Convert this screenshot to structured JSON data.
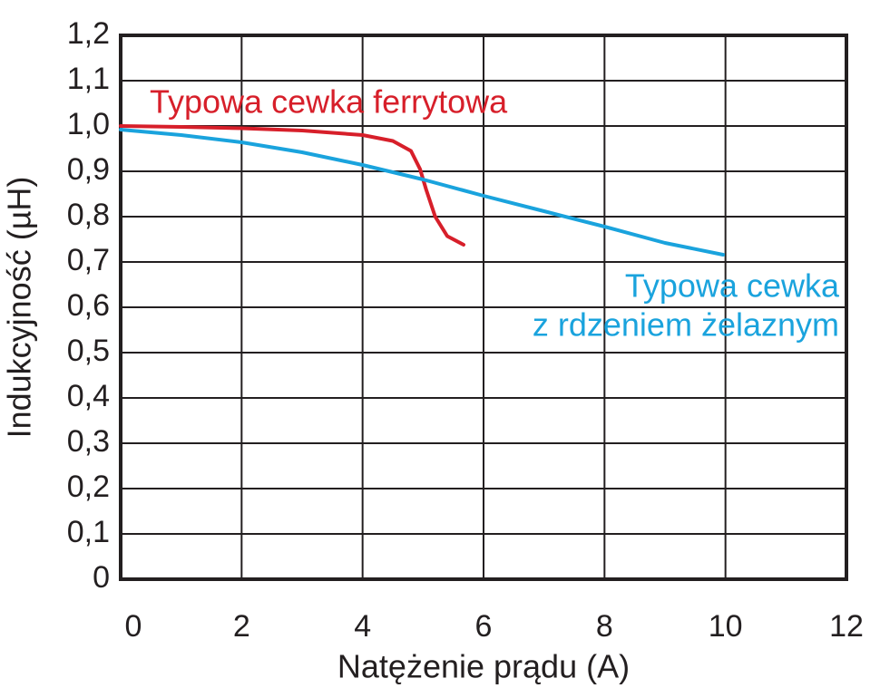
{
  "chart_data": {
    "type": "line",
    "x_label": "Natężenie prądu (A)",
    "y_label": "Indukcyjność (µH)",
    "xlim": [
      0,
      12
    ],
    "xticks": [
      0,
      2,
      4,
      6,
      8,
      10,
      12
    ],
    "ylim": [
      0,
      1.2
    ],
    "yticks": [
      0,
      {
        "value": 0.1,
        "label": "0,1"
      },
      {
        "value": 0.2,
        "label": "0,2"
      },
      {
        "value": 0.3,
        "label": "0,3"
      },
      {
        "value": 0.4,
        "label": "0,4"
      },
      {
        "value": 0.5,
        "label": "0,5"
      },
      {
        "value": 0.6,
        "label": "0,6"
      },
      {
        "value": 0.7,
        "label": "0,7"
      },
      {
        "value": 0.8,
        "label": "0,8"
      },
      {
        "value": 0.9,
        "label": "0,9"
      },
      {
        "value": 1.0,
        "label": "1,0"
      },
      {
        "value": 1.1,
        "label": "1,1"
      },
      {
        "value": 1.2,
        "label": "1,2"
      }
    ],
    "grid": true,
    "series": [
      {
        "color": "#d71f2a",
        "x": [
          0,
          1,
          2,
          3,
          4,
          4.5,
          4.8,
          4.95,
          5.05,
          5.2,
          5.4,
          5.67
        ],
        "values": [
          1.0,
          0.998,
          0.995,
          0.99,
          0.98,
          0.967,
          0.945,
          0.905,
          0.86,
          0.8,
          0.757,
          0.738
        ]
      },
      {
        "color": "#1aa3dd",
        "x": [
          0,
          1,
          2,
          3,
          4,
          5,
          6,
          7,
          8,
          9,
          9.96
        ],
        "values": [
          0.992,
          0.98,
          0.964,
          0.942,
          0.914,
          0.882,
          0.846,
          0.812,
          0.778,
          0.742,
          0.716
        ]
      }
    ],
    "annotations": [
      {
        "lines": [
          "Typowa cewka ferrytowa"
        ],
        "color": "#d71f2a"
      },
      {
        "lines": [
          "Typowa cewka",
          "z rdzeniem żelaznym"
        ],
        "color": "#1aa3dd"
      }
    ]
  }
}
